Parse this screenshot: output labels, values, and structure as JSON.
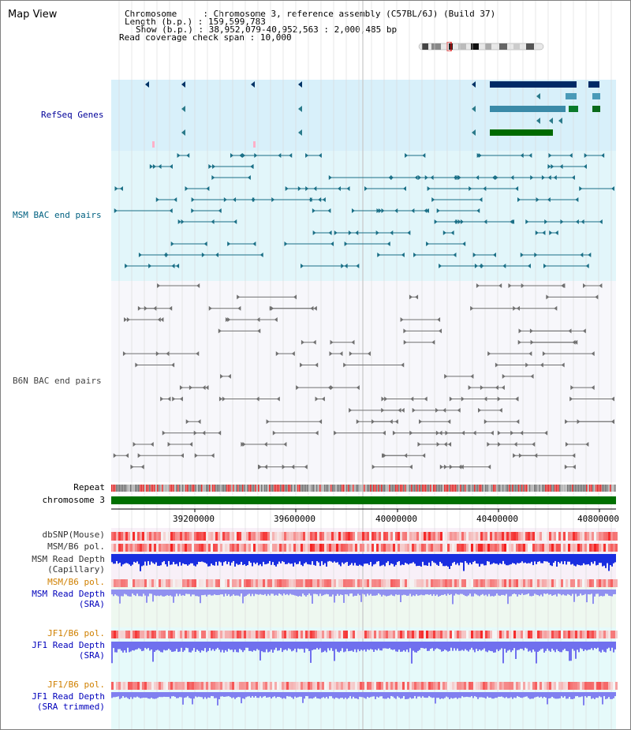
{
  "window": {
    "title": "Map View"
  },
  "info": {
    "chromosome_label": "Chromosome",
    "chromosome_value": "Chromosome 3, reference assembly (C57BL/6J) (Build 37)",
    "length_label": "Length (b.p.)",
    "length_value": "159,599,783",
    "show_label": "Show (b.p.)",
    "show_value": "38,952,079-40,952,563 : 2,000,485 bp",
    "coverage_label": "Read coverage check span",
    "coverage_value": "10,000"
  },
  "tracks": {
    "refseq": "RefSeq Genes",
    "msm_bac": "MSM BAC end pairs",
    "b6n_bac": "B6N BAC end pairs",
    "repeat": "Repeat",
    "chromosome": "chromosome 3",
    "dbsnp": "dbSNP(Mouse)",
    "msm_b6_pol": "MSM/B6 pol.",
    "msm_read_depth_cap_1": "MSM Read Depth",
    "msm_read_depth_cap_2": "(Capillary)",
    "msm_b6_pol_2": "MSM/B6 pol.",
    "msm_read_depth_sra_1": "MSM Read Depth",
    "msm_read_depth_sra_2": "(SRA)",
    "jf1_b6_pol": "JF1/B6 pol.",
    "jf1_read_depth_sra_1": "JF1 Read Depth",
    "jf1_read_depth_sra_2": "(SRA)",
    "jf1_b6_pol_2": "JF1/B6 pol.",
    "jf1_read_depth_trim_1": "JF1 Read Depth",
    "jf1_read_depth_trim_2": "(SRA trimmed)"
  },
  "axis": {
    "ticks": [
      "39200000",
      "39600000",
      "40000000",
      "40400000",
      "40800000"
    ]
  },
  "colors": {
    "refseq_label": "#000099",
    "msm_label": "#006080",
    "b6n_label": "#444444",
    "pol_label": "#d08000",
    "depth_label": "#0000bb",
    "refseq_bg": "#d8f0fa",
    "msm_bg": "#e2f6fa",
    "b6n_bg": "#f7f7fb",
    "chromosome_bar": "#007000"
  }
}
